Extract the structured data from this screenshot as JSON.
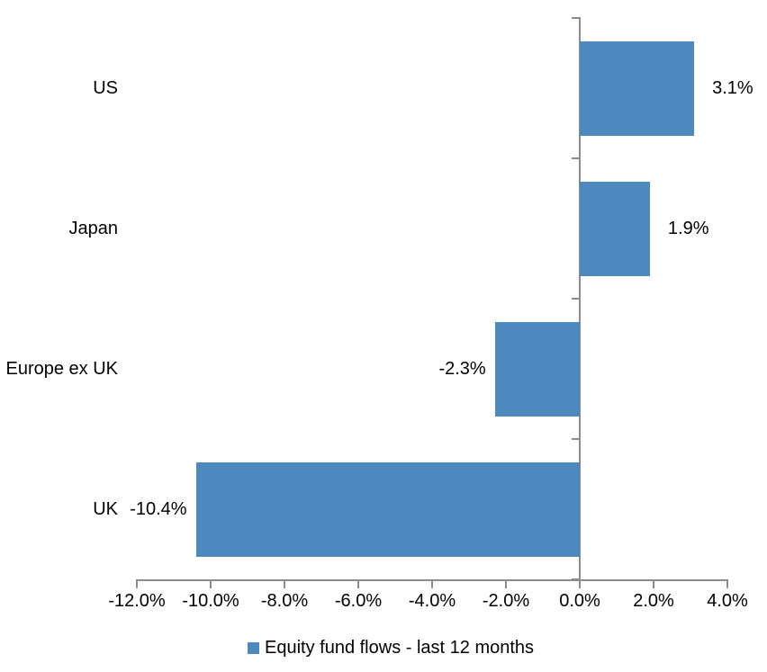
{
  "chart_data": {
    "type": "bar",
    "orientation": "horizontal",
    "title": "",
    "categories": [
      "US",
      "Japan",
      "Europe ex UK",
      "UK"
    ],
    "values": [
      3.1,
      1.9,
      -2.3,
      -10.4
    ],
    "value_labels": [
      "3.1%",
      "1.9%",
      "-2.3%",
      "-10.4%"
    ],
    "x_tick_labels": [
      "-12.0%",
      "-10.0%",
      "-8.0%",
      "-6.0%",
      "-4.0%",
      "-2.0%",
      "0.0%",
      "2.0%",
      "4.0%"
    ],
    "x_tick_step": 2,
    "xlim": [
      -12,
      4
    ],
    "xlabel": "",
    "ylabel": "",
    "grid": false,
    "legend": "Equity fund flows - last 12 months",
    "legend_position": "bottom",
    "bar_color": "#4D89BE",
    "axis_color": "#8C8C8C",
    "text_color": "#000000",
    "background_color": "#FFFFFF"
  }
}
